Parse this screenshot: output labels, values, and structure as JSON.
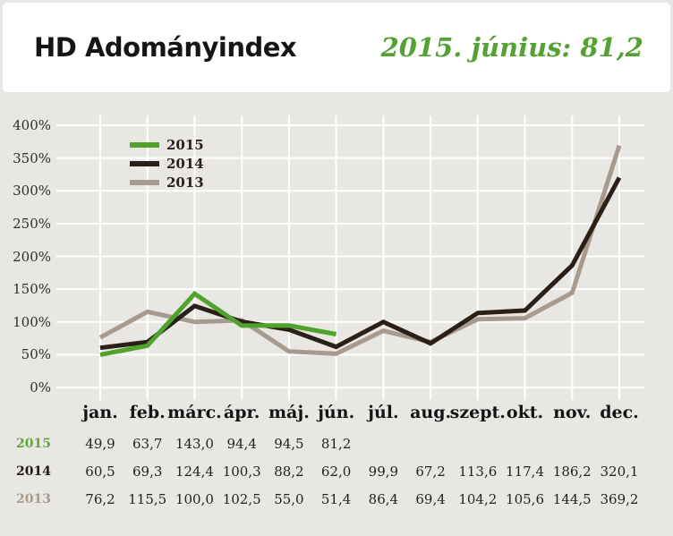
{
  "header": {
    "title": "HD Adományindex",
    "subtitle": "2015. június: 81,2"
  },
  "chart_data": {
    "type": "line",
    "categories": [
      "jan.",
      "feb.",
      "márc.",
      "ápr.",
      "máj.",
      "jún.",
      "júl.",
      "aug.",
      "szept.",
      "okt.",
      "nov.",
      "dec."
    ],
    "y_tick_labels": [
      "0%",
      "50%",
      "100%",
      "150%",
      "200%",
      "250%",
      "300%",
      "350%",
      "400%"
    ],
    "y_tick_values": [
      0,
      50,
      100,
      150,
      200,
      250,
      300,
      350,
      400
    ],
    "ylim": [
      0,
      400
    ],
    "grid": true,
    "legend_position": "top-left",
    "series": [
      {
        "name": "2015",
        "color": "#4fa32b",
        "values": [
          49.9,
          63.7,
          143.0,
          94.4,
          94.5,
          81.2
        ]
      },
      {
        "name": "2014",
        "color": "#2b2017",
        "values": [
          60.5,
          69.3,
          124.4,
          100.3,
          88.2,
          62.0,
          99.9,
          67.2,
          113.6,
          117.4,
          186.2,
          320.1
        ]
      },
      {
        "name": "2013",
        "color": "#a79a8e",
        "values": [
          76.2,
          115.5,
          100.0,
          102.5,
          55.0,
          51.4,
          86.4,
          69.4,
          104.2,
          105.6,
          144.5,
          369.2
        ]
      }
    ]
  },
  "table": {
    "rows": [
      {
        "label": "2015",
        "label_color": "#64a73e",
        "values": [
          "49,9",
          "63,7",
          "143,0",
          "94,4",
          "94,5",
          "81,2"
        ]
      },
      {
        "label": "2014",
        "label_color": "#1f1a12",
        "values": [
          "60,5",
          "69,3",
          "124,4",
          "100,3",
          "88,2",
          "62,0",
          "99,9",
          "67,2",
          "113,6",
          "117,4",
          "186,2",
          "320,1"
        ]
      },
      {
        "label": "2013",
        "label_color": "#a79a8e",
        "values": [
          "76,2",
          "115,5",
          "100,0",
          "102,5",
          "55,0",
          "51,4",
          "86,4",
          "69,4",
          "104,2",
          "105,6",
          "144,5",
          "369,2"
        ]
      }
    ]
  },
  "colors": {
    "page_background": "#e9e7e3",
    "card_background": "#ffffff",
    "gridline": "#ffffff",
    "accent_green": "#54a233"
  }
}
